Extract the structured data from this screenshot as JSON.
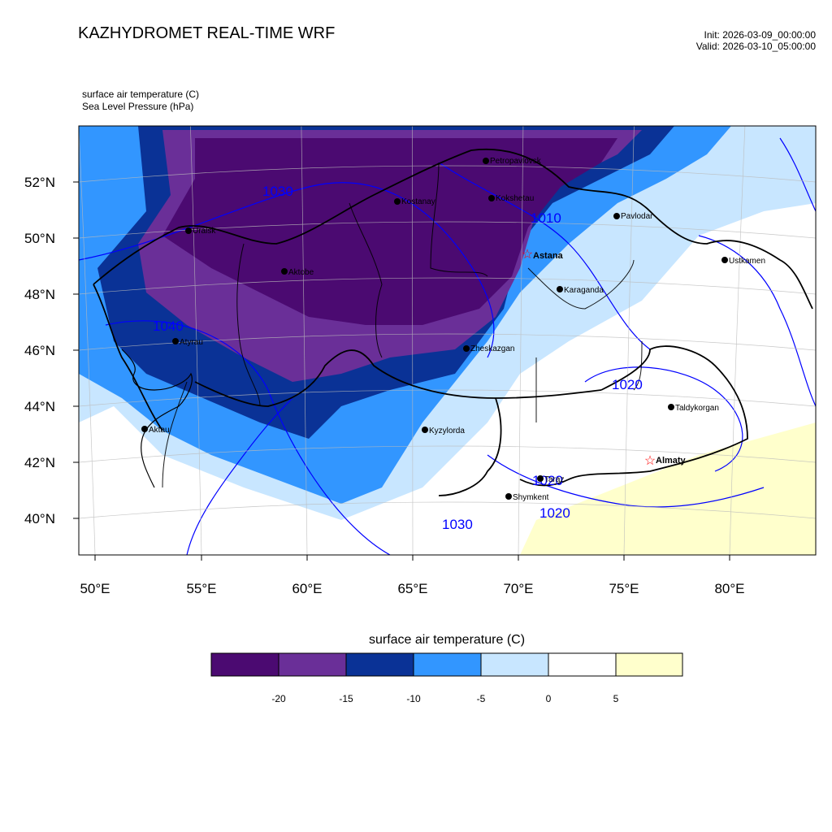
{
  "header": {
    "title": "KAZHYDROMET REAL-TIME WRF",
    "init": "Init: 2026-03-09_00:00:00",
    "valid": "Valid: 2026-03-10_05:00:00",
    "variable_1": "surface air temperature   (C)",
    "variable_2": "Sea Level Pressure   (hPa)"
  },
  "map": {
    "lat_labels": [
      "52°N",
      "50°N",
      "48°N",
      "46°N",
      "44°N",
      "42°N",
      "40°N"
    ],
    "lon_labels": [
      "50°E",
      "55°E",
      "60°E",
      "65°E",
      "70°E",
      "75°E",
      "80°E"
    ],
    "cities": [
      {
        "name": "Petropavlovsk",
        "marker": "dot"
      },
      {
        "name": "Kostanay",
        "marker": "dot"
      },
      {
        "name": "Kokshetau",
        "marker": "dot"
      },
      {
        "name": "Pavlodar",
        "marker": "dot"
      },
      {
        "name": "Uralsk",
        "marker": "dot"
      },
      {
        "name": "Astana",
        "marker": "star",
        "bold": true
      },
      {
        "name": "Ustkamen",
        "marker": "dot"
      },
      {
        "name": "Aktobe",
        "marker": "dot"
      },
      {
        "name": "Karaganda",
        "marker": "dot"
      },
      {
        "name": "Atyrau",
        "marker": "dot"
      },
      {
        "name": "Zheskazgan",
        "marker": "dot"
      },
      {
        "name": "Taldykorgan",
        "marker": "dot"
      },
      {
        "name": "Aktau",
        "marker": "dot"
      },
      {
        "name": "Kyzylorda",
        "marker": "dot"
      },
      {
        "name": "Almaty",
        "marker": "star",
        "bold": true
      },
      {
        "name": "Taraz",
        "marker": "dot"
      },
      {
        "name": "Shymkent",
        "marker": "dot"
      }
    ],
    "isobar_labels": [
      "1030",
      "1040",
      "1010",
      "1020",
      "1020",
      "1020",
      "1030"
    ],
    "colors": {
      "lt_minus20": "#4b0a71",
      "m20_m15": "#6a2f98",
      "m15_m10": "#0a3296",
      "m10_m5": "#3296ff",
      "m5_0": "#c8e6ff",
      "0_5": "#ffffff",
      "gt_5": "#ffffcc",
      "isobar": "#0000ff",
      "border": "#000000",
      "star": "#ff0000"
    }
  },
  "colorbar": {
    "title": "surface air temperature (C)",
    "tick_labels": [
      "-20",
      "-15",
      "-10",
      "-5",
      "0",
      "5"
    ],
    "colors": [
      "#4b0a71",
      "#6a2f98",
      "#0a3296",
      "#3296ff",
      "#c8e6ff",
      "#ffffff",
      "#ffffcc"
    ]
  }
}
